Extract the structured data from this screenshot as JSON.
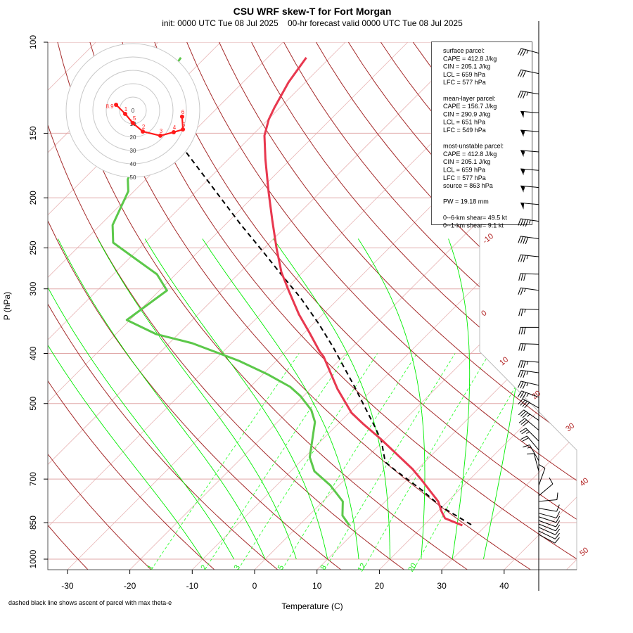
{
  "header": {
    "title": "CSU WRF skew-T for Fort Morgan",
    "subtitle": "init: 0000 UTC Tue 08 Jul 2025    00-hr forecast valid 0000 UTC Tue 08 Jul 2025"
  },
  "footnote": "dashed black line shows ascent of parcel with max theta-e",
  "info_box": {
    "lines": [
      "surface parcel:",
      "CAPE = 412.8 J/kg",
      "CIN = 205.1 J/kg",
      "LCL = 659 hPa",
      "LFC = 577 hPa",
      "",
      "mean-layer parcel:",
      "CAPE = 156.7 J/kg",
      "CIN = 290.9 J/kg",
      "LCL = 651 hPa",
      "LFC = 549 hPa",
      "",
      "most-unstable parcel:",
      "CAPE = 412.8 J/kg",
      "CIN = 205.1 J/kg",
      "LCL = 659 hPa",
      "LFC = 577 hPa",
      "source = 863 hPa",
      "",
      "PW =  19.18 mm",
      "",
      "0--6-km shear= 49.5 kt",
      "0--1-km shear= 9.1 kt"
    ]
  },
  "chart_data": {
    "type": "line",
    "subtype": "skew-T log-P",
    "xlabel": "Temperature (C)",
    "ylabel": "P (hPa)",
    "x_ticks": [
      -30,
      -20,
      -10,
      0,
      10,
      20,
      30,
      40
    ],
    "y_ticks": [
      100,
      150,
      200,
      250,
      300,
      400,
      500,
      700,
      850,
      1000
    ],
    "y_scale": "log",
    "ylim": [
      1048,
      100
    ],
    "xlim_at_bottom": [
      -33,
      45
    ],
    "grid": true,
    "isotherm_labels": [
      "-10",
      "0",
      "10",
      "20",
      "30",
      "40",
      "50"
    ],
    "mixing_ratio_lines_gkg": [
      1,
      2,
      3,
      5,
      8,
      12,
      20
    ],
    "moist_adiabats_thetaw_c": [
      -10,
      -5,
      0,
      5,
      10,
      15,
      20,
      25,
      30,
      35
    ],
    "dry_adiabat_range_c": [
      -40,
      250
    ],
    "colors": {
      "temperature": "#e8384f",
      "dewpoint": "#5cc84a",
      "parcel": "#000000",
      "isotherm": "#e8b4b4",
      "dry_adiabat": "#a52a2a",
      "moist_adiabat": "#00ee00",
      "mixing_ratio": "#33ff33",
      "isobar": "#e0a8a8",
      "hodograph": "#ff1a1a"
    },
    "temperature": [
      {
        "p": 107.1,
        "t": -73.8
      },
      {
        "p": 119.5,
        "t": -72.7
      },
      {
        "p": 133.8,
        "t": -70.9
      },
      {
        "p": 141.1,
        "t": -69.9
      },
      {
        "p": 151.6,
        "t": -68.0
      },
      {
        "p": 168.7,
        "t": -64.0
      },
      {
        "p": 194.9,
        "t": -58.3
      },
      {
        "p": 220.9,
        "t": -53.2
      },
      {
        "p": 250.4,
        "t": -48.0
      },
      {
        "p": 278.5,
        "t": -43.4
      },
      {
        "p": 302.2,
        "t": -39.3
      },
      {
        "p": 336.2,
        "t": -33.8
      },
      {
        "p": 364.7,
        "t": -29.2
      },
      {
        "p": 396.9,
        "t": -24.5
      },
      {
        "p": 405.6,
        "t": -23.1
      },
      {
        "p": 468.5,
        "t": -15.7
      },
      {
        "p": 521.2,
        "t": -9.6
      },
      {
        "p": 548.0,
        "t": -5.9
      },
      {
        "p": 583.4,
        "t": -1.0
      },
      {
        "p": 669.7,
        "t": 9.2
      },
      {
        "p": 704.1,
        "t": 12.5
      },
      {
        "p": 773.5,
        "t": 18.5
      },
      {
        "p": 808.1,
        "t": 20.6
      },
      {
        "p": 833.9,
        "t": 22.3
      },
      {
        "p": 860.4,
        "t": 26.2
      }
    ],
    "dewpoint": [
      {
        "p": 107.1,
        "t": -93.9
      },
      {
        "p": 109.2,
        "t": -93.7
      },
      {
        "p": 184.2,
        "t": -82.9
      },
      {
        "p": 194.3,
        "t": -80.9
      },
      {
        "p": 225.8,
        "t": -78.0
      },
      {
        "p": 244.2,
        "t": -75.1
      },
      {
        "p": 262.5,
        "t": -68.9
      },
      {
        "p": 281.2,
        "t": -63.0
      },
      {
        "p": 302.2,
        "t": -58.8
      },
      {
        "p": 344.7,
        "t": -60.5
      },
      {
        "p": 366.9,
        "t": -53.6
      },
      {
        "p": 382.2,
        "t": -46.3
      },
      {
        "p": 413.3,
        "t": -36.0
      },
      {
        "p": 438.7,
        "t": -29.3
      },
      {
        "p": 464.2,
        "t": -23.6
      },
      {
        "p": 483.5,
        "t": -20.5
      },
      {
        "p": 514.7,
        "t": -16.5
      },
      {
        "p": 542.9,
        "t": -14.0
      },
      {
        "p": 634.9,
        "t": -9.2
      },
      {
        "p": 676.0,
        "t": -6.2
      },
      {
        "p": 719.7,
        "t": -1.4
      },
      {
        "p": 773.5,
        "t": 3.2
      },
      {
        "p": 823.5,
        "t": 5.4
      },
      {
        "p": 860.4,
        "t": 8.1
      }
    ],
    "parcel": [
      {
        "p": 163.5,
        "t": -77.8
      },
      {
        "p": 225.8,
        "t": -57.4
      },
      {
        "p": 253.5,
        "t": -49.8
      },
      {
        "p": 281.2,
        "t": -43.1
      },
      {
        "p": 311.8,
        "t": -36.3
      },
      {
        "p": 350.1,
        "t": -29.2
      },
      {
        "p": 388.2,
        "t": -23.2
      },
      {
        "p": 459.8,
        "t": -13.8
      },
      {
        "p": 554.9,
        "t": -3.6
      },
      {
        "p": 590.8,
        "t": -0.3
      },
      {
        "p": 649.1,
        "t": 3.7
      },
      {
        "p": 669.7,
        "t": 6.2
      },
      {
        "p": 735.6,
        "t": 14.1
      },
      {
        "p": 790.6,
        "t": 19.7
      },
      {
        "p": 860.4,
        "t": 27.8
      }
    ],
    "hodograph": {
      "ring_labels": [
        "0",
        "10",
        "20",
        "30",
        "40",
        "50"
      ],
      "points": [
        {
          "label": "8.9",
          "u": -12.6,
          "v": 4.2
        },
        {
          "label": "1",
          "u": -5.8,
          "v": -2.6
        },
        {
          "label": ".5",
          "u": 0.0,
          "v": -9.5
        },
        {
          "label": "2",
          "u": 7.4,
          "v": -15.8
        },
        {
          "label": "3",
          "u": 20.5,
          "v": -18.9
        },
        {
          "label": "4",
          "u": 30.5,
          "v": -16.3
        },
        {
          "label": "5",
          "u": 37.4,
          "v": -14.2
        },
        {
          "label": "6",
          "u": 36.8,
          "v": -4.7
        }
      ]
    },
    "wind_barbs": [
      {
        "p": 105,
        "spd": 35,
        "dir": 285
      },
      {
        "p": 115,
        "spd": 30,
        "dir": 282
      },
      {
        "p": 126,
        "spd": 35,
        "dir": 280
      },
      {
        "p": 137,
        "spd": 50,
        "dir": 275
      },
      {
        "p": 149,
        "spd": 55,
        "dir": 275
      },
      {
        "p": 163,
        "spd": 55,
        "dir": 275
      },
      {
        "p": 177,
        "spd": 55,
        "dir": 275
      },
      {
        "p": 191,
        "spd": 55,
        "dir": 275
      },
      {
        "p": 206,
        "spd": 50,
        "dir": 275
      },
      {
        "p": 222,
        "spd": 45,
        "dir": 278
      },
      {
        "p": 240,
        "spd": 40,
        "dir": 278
      },
      {
        "p": 260,
        "spd": 35,
        "dir": 276
      },
      {
        "p": 281,
        "spd": 30,
        "dir": 272
      },
      {
        "p": 302,
        "spd": 25,
        "dir": 278
      },
      {
        "p": 329,
        "spd": 25,
        "dir": 272
      },
      {
        "p": 356,
        "spd": 30,
        "dir": 270
      },
      {
        "p": 384,
        "spd": 30,
        "dir": 272
      },
      {
        "p": 416,
        "spd": 35,
        "dir": 275
      },
      {
        "p": 436,
        "spd": 35,
        "dir": 278
      },
      {
        "p": 461,
        "spd": 35,
        "dir": 283
      },
      {
        "p": 486,
        "spd": 35,
        "dir": 290
      },
      {
        "p": 510,
        "spd": 40,
        "dir": 300
      },
      {
        "p": 539,
        "spd": 35,
        "dir": 305
      },
      {
        "p": 563,
        "spd": 30,
        "dir": 310
      },
      {
        "p": 591,
        "spd": 25,
        "dir": 315
      },
      {
        "p": 615,
        "spd": 20,
        "dir": 320
      },
      {
        "p": 645,
        "spd": 15,
        "dir": 330
      },
      {
        "p": 676,
        "spd": 10,
        "dir": 345
      },
      {
        "p": 720,
        "spd": 10,
        "dir": 20
      },
      {
        "p": 754,
        "spd": 10,
        "dir": 50
      },
      {
        "p": 773,
        "spd": 10,
        "dir": 85
      },
      {
        "p": 797,
        "spd": 10,
        "dir": 100
      },
      {
        "p": 815,
        "spd": 10,
        "dir": 105
      },
      {
        "p": 828,
        "spd": 10,
        "dir": 108
      },
      {
        "p": 842,
        "spd": 10,
        "dir": 110
      },
      {
        "p": 855,
        "spd": 10,
        "dir": 112
      },
      {
        "p": 868,
        "spd": 10,
        "dir": 114
      },
      {
        "p": 882,
        "spd": 10,
        "dir": 116
      },
      {
        "p": 896,
        "spd": 10,
        "dir": 118
      }
    ]
  }
}
